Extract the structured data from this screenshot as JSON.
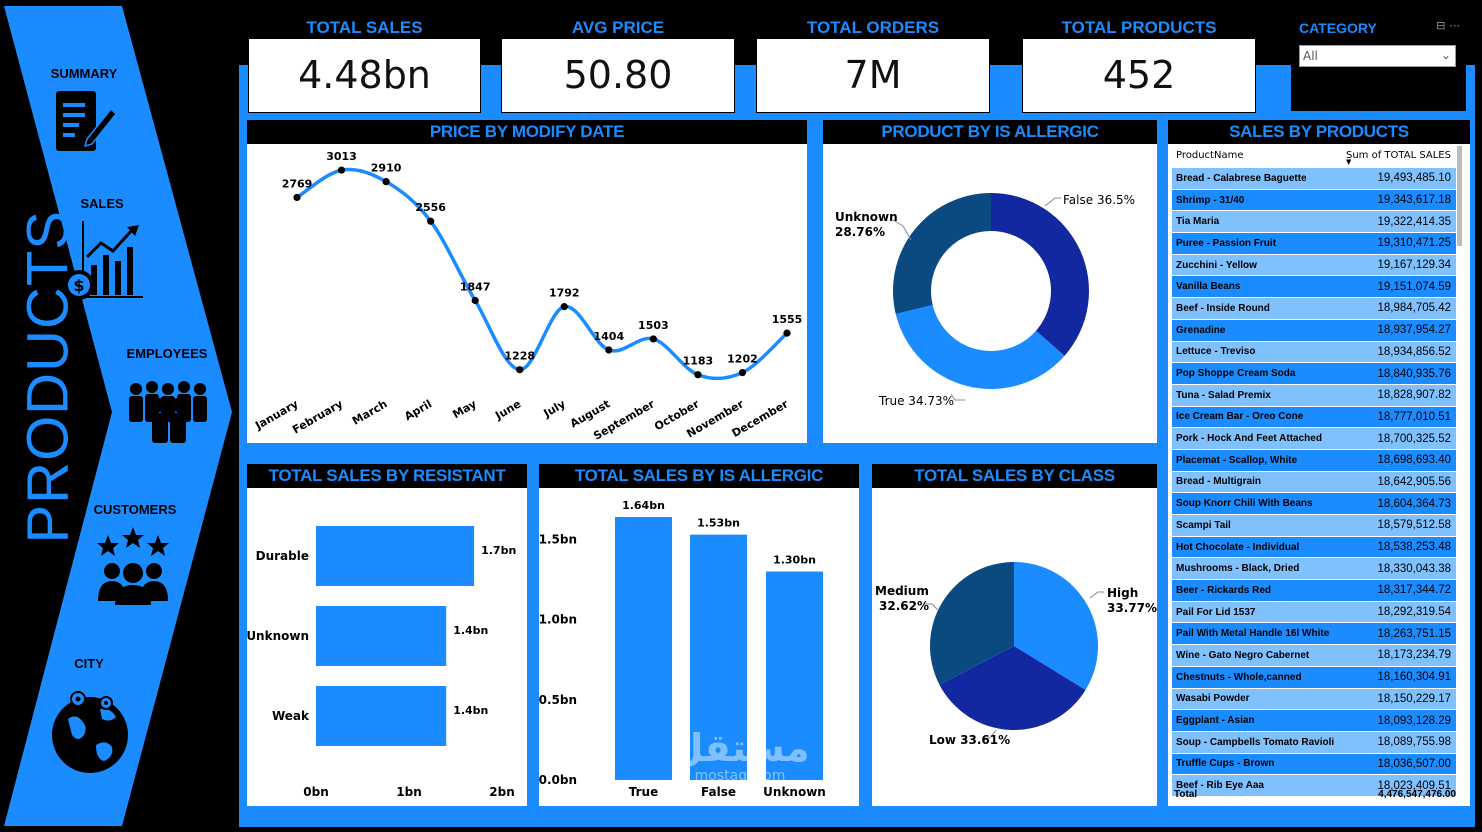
{
  "sidebar": {
    "title": "PRODUCTS",
    "items": [
      {
        "label": "SUMMARY",
        "icon": "document-edit-icon"
      },
      {
        "label": "SALES",
        "icon": "sales-chart-icon"
      },
      {
        "label": "EMPLOYEES",
        "icon": "people-group-icon"
      },
      {
        "label": "CUSTOMERS",
        "icon": "customers-rating-icon"
      },
      {
        "label": "CITY",
        "icon": "globe-location-icon"
      }
    ]
  },
  "kpis": [
    {
      "label": "TOTAL SALES",
      "value": "4.48bn"
    },
    {
      "label": "AVG PRICE",
      "value": "50.80"
    },
    {
      "label": "TOTAL ORDERS",
      "value": "7M"
    },
    {
      "label": "TOTAL PRODUCTS",
      "value": "452"
    }
  ],
  "slicer": {
    "label": "CATEGORY",
    "value": "All"
  },
  "colors": {
    "accent": "#1a8cff",
    "navy": "#0a4a80",
    "royal": "#1228a0",
    "header_bg": "#000000"
  },
  "chart_data": [
    {
      "type": "line",
      "title": "PRICE BY MODIFY DATE",
      "categories": [
        "January",
        "February",
        "March",
        "April",
        "May",
        "June",
        "July",
        "August",
        "September",
        "October",
        "November",
        "December"
      ],
      "values": [
        2769,
        3013,
        2910,
        2556,
        1847,
        1228,
        1792,
        1404,
        1503,
        1183,
        1202,
        1555
      ],
      "labels": [
        "2769",
        "3013",
        "2910",
        "2556",
        "1847",
        "1228",
        "1792",
        "1404",
        "1503",
        "1183",
        "1202",
        "1555"
      ]
    },
    {
      "type": "pie",
      "title": "PRODUCT BY IS ALLERGIC",
      "slices": [
        {
          "name": "False",
          "value": 36.5,
          "label": "False 36.5%",
          "color": "#1228a0"
        },
        {
          "name": "True",
          "value": 34.73,
          "label": "True 34.73%",
          "color": "#1a8cff"
        },
        {
          "name": "Unknown",
          "value": 28.76,
          "label_line1": "Unknown",
          "label_line2": "28.76%",
          "color": "#0a4a80"
        }
      ]
    },
    {
      "type": "bar",
      "title": "TOTAL SALES BY RESISTANT",
      "categories": [
        "Durable",
        "Unknown",
        "Weak"
      ],
      "values": [
        1.7,
        1.4,
        1.4
      ],
      "labels": [
        "1.7bn",
        "1.4bn",
        "1.4bn"
      ],
      "xticks": [
        "0bn",
        "1bn",
        "2bn"
      ],
      "xlim": [
        0,
        2
      ]
    },
    {
      "type": "bar",
      "title": "TOTAL SALES BY IS ALLERGIC",
      "categories": [
        "True",
        "False",
        "Unknown"
      ],
      "values": [
        1.64,
        1.53,
        1.3
      ],
      "labels": [
        "1.64bn",
        "1.53bn",
        "1.30bn"
      ],
      "yticks": [
        "0.0bn",
        "0.5bn",
        "1.0bn",
        "1.5bn"
      ],
      "ylim": [
        0,
        1.64
      ]
    },
    {
      "type": "pie",
      "title": "TOTAL SALES BY CLASS",
      "slices": [
        {
          "name": "High",
          "value": 33.77,
          "label_line1": "High",
          "label_line2": "33.77%",
          "color": "#1a8cff"
        },
        {
          "name": "Low",
          "value": 33.61,
          "label": "Low 33.61%",
          "color": "#1228a0"
        },
        {
          "name": "Medium",
          "value": 32.62,
          "label_line1": "Medium",
          "label_line2": "32.62%",
          "color": "#0a4a80"
        }
      ]
    }
  ],
  "table": {
    "title": "SALES BY PRODUCTS",
    "col_name": "ProductName",
    "col_value": "Sum of TOTAL SALES",
    "rows": [
      {
        "name": "Bread - Calabrese Baguette",
        "value": "19,493,485.10"
      },
      {
        "name": "Shrimp - 31/40",
        "value": "19,343,617.18"
      },
      {
        "name": "Tia Maria",
        "value": "19,322,414.35"
      },
      {
        "name": "Puree - Passion Fruit",
        "value": "19,310,471.25"
      },
      {
        "name": "Zucchini - Yellow",
        "value": "19,167,129.34"
      },
      {
        "name": "Vanilla Beans",
        "value": "19,151,074.59"
      },
      {
        "name": "Beef - Inside Round",
        "value": "18,984,705.42"
      },
      {
        "name": "Grenadine",
        "value": "18,937,954.27"
      },
      {
        "name": "Lettuce - Treviso",
        "value": "18,934,856.52"
      },
      {
        "name": "Pop Shoppe Cream Soda",
        "value": "18,840,935.76"
      },
      {
        "name": "Tuna - Salad Premix",
        "value": "18,828,907.82"
      },
      {
        "name": "Ice Cream Bar - Oreo Cone",
        "value": "18,777,010.51"
      },
      {
        "name": "Pork - Hock And Feet Attached",
        "value": "18,700,325.52"
      },
      {
        "name": "Placemat - Scallop, White",
        "value": "18,698,693.40"
      },
      {
        "name": "Bread - Multigrain",
        "value": "18,642,905.56"
      },
      {
        "name": "Soup Knorr Chili With Beans",
        "value": "18,604,364.73"
      },
      {
        "name": "Scampi Tail",
        "value": "18,579,512.58"
      },
      {
        "name": "Hot Chocolate - Individual",
        "value": "18,538,253.48"
      },
      {
        "name": "Mushrooms - Black, Dried",
        "value": "18,330,043.38"
      },
      {
        "name": "Beer - Rickards Red",
        "value": "18,317,344.72"
      },
      {
        "name": "Pail For Lid 1537",
        "value": "18,292,319.54"
      },
      {
        "name": "Pail With Metal Handle 16l White",
        "value": "18,263,751.15"
      },
      {
        "name": "Wine - Gato Negro Cabernet",
        "value": "18,173,234.79"
      },
      {
        "name": "Chestnuts - Whole,canned",
        "value": "18,160,304.91"
      },
      {
        "name": "Wasabi Powder",
        "value": "18,150,229.17"
      },
      {
        "name": "Eggplant - Asian",
        "value": "18,093,128.29"
      },
      {
        "name": "Soup - Campbells Tomato Ravioli",
        "value": "18,089,755.98"
      },
      {
        "name": "Truffle Cups - Brown",
        "value": "18,036,507.00"
      },
      {
        "name": "Beef - Rib Eye Aaa",
        "value": "18,023,409.51"
      }
    ],
    "total_label": "Total",
    "total_value": "4,476,547,476.00"
  },
  "watermark": {
    "line1": "مستقل",
    "line2": "mostaql.com"
  }
}
